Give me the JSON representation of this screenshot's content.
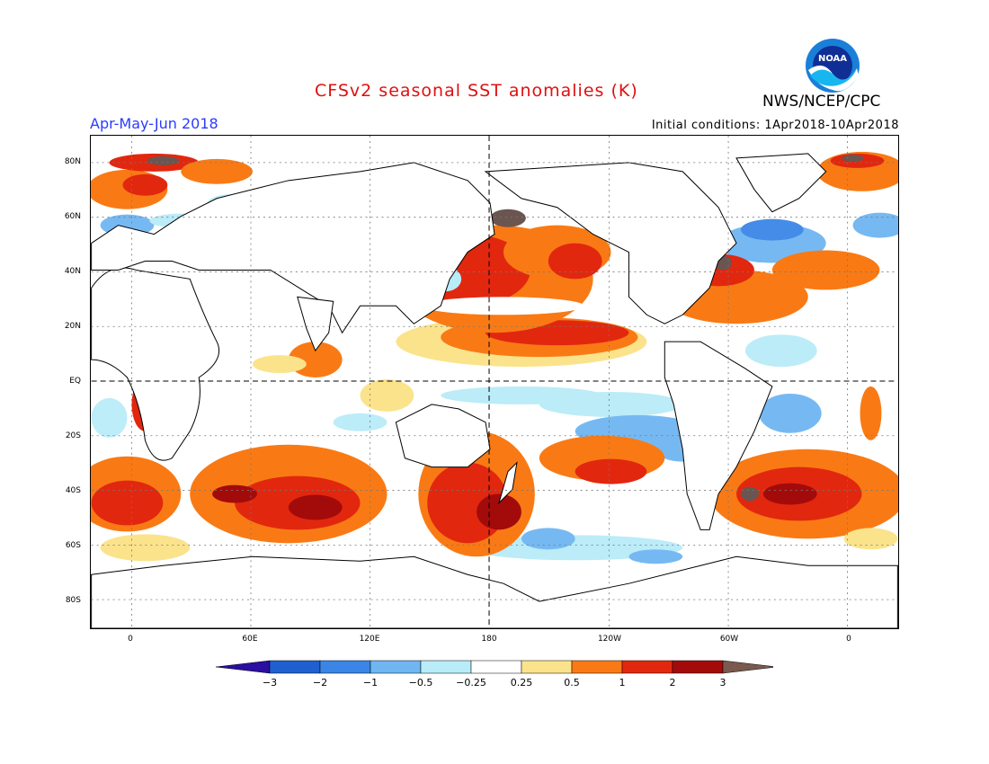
{
  "header": {
    "title": "CFSv2 seasonal SST anomalies (K)",
    "period": "Apr-May-Jun 2018",
    "initial_conditions": "Initial conditions: 1Apr2018-10Apr2018",
    "agency": "NWS/NCEP/CPC",
    "logo_text": "NOAA"
  },
  "map": {
    "lat_labels": [
      "80N",
      "60N",
      "40N",
      "20N",
      "EQ",
      "20S",
      "40S",
      "60S",
      "80S"
    ],
    "lon_labels": [
      "0",
      "60E",
      "120E",
      "180",
      "120W",
      "60W",
      "0"
    ]
  },
  "colorbar": {
    "labels": [
      "-3",
      "-2",
      "-1",
      "-0.5",
      "-0.25",
      "0.25",
      "0.5",
      "1",
      "2",
      "3"
    ],
    "colors": [
      "#2a0fa0",
      "#1f5fd0",
      "#3a86e6",
      "#6fb6f2",
      "#b8ecf8",
      "#ffffff",
      "#fbe38c",
      "#f97a14",
      "#e2270f",
      "#a30b0b",
      "#7a5a4f"
    ]
  },
  "colors": {
    "warm1": "#fbe38c",
    "warm2": "#f97a14",
    "warm3": "#e2270f",
    "warm4": "#a30b0b",
    "warm5": "#6b5550",
    "cool1": "#b8ecf8",
    "cool2": "#6fb6f2",
    "cool3": "#3a86e6"
  }
}
